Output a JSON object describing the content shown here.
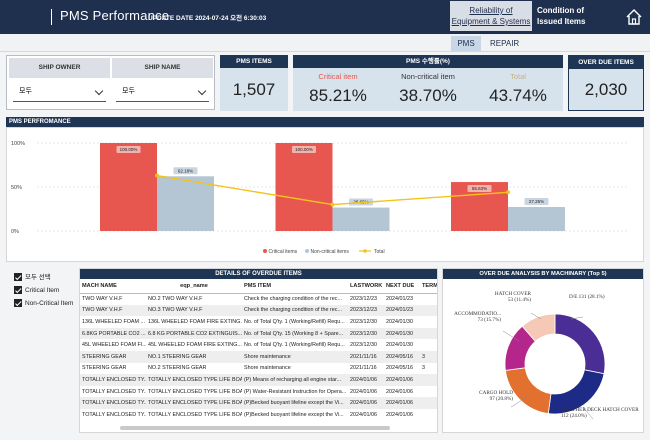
{
  "header": {
    "title": "PMS Performance",
    "update": "UPDATE DATE  2024-07-24 오전 6:30:03",
    "tab_reliability_line1": "Reliability of",
    "tab_reliability_line2": "Equipment & Systems",
    "tab_condition_line1": "Condition of",
    "tab_condition_line2": "Issued Items",
    "home_icon": "home-icon"
  },
  "subtabs": {
    "pms": "PMS",
    "repair": "REPAIR"
  },
  "filters": {
    "owner_label": "SHIP OWNER",
    "name_label": "SHIP NAME",
    "owner_value": "모두",
    "name_value": "모두"
  },
  "kpis": {
    "pms_items_label": "PMS ITEMS",
    "pms_items_value": "1,507",
    "rate_label": "PMS 수행률(%)",
    "critical_label": "Critical item",
    "critical_value": "85.21%",
    "noncritical_label": "Non-critical item",
    "noncritical_value": "38.70%",
    "total_label": "Total",
    "total_value": "43.74%",
    "overdue_label": "OVER DUE ITEMS",
    "overdue_value": "2,030"
  },
  "colors": {
    "critical": "#e8574f",
    "noncritical": "#b4c5d4",
    "total": "#f2c41c",
    "navy": "#1f3554"
  },
  "chart_data": [
    {
      "type": "bar",
      "title": "PMS PERFROMANCE",
      "categories": [
        "",
        "",
        ""
      ],
      "yticks": [
        "0%",
        "50%",
        "100%"
      ],
      "ylim": [
        0,
        100
      ],
      "series": [
        {
          "name": "Critical items",
          "values": [
            100.0,
            100.0,
            55.63
          ],
          "labels": [
            "100.00%",
            "100.00%",
            "55.63%"
          ]
        },
        {
          "name": "Non-critical items",
          "values": [
            62.18,
            26.65,
            27.25
          ],
          "labels": [
            "62.18%",
            "26.65%",
            "27.25%"
          ]
        },
        {
          "name": "Total",
          "type": "line",
          "values": [
            63.0,
            30.0,
            44.0
          ]
        }
      ]
    },
    {
      "type": "pie",
      "title": "OVER DUE ANALYSIS BY MACHINARY (Top 5)",
      "slices": [
        {
          "label": "D/E",
          "value": 131,
          "pct": "28.1%",
          "color": "#4a2e96",
          "text": "D/E 131 (28.1%)"
        },
        {
          "label": "WEATHER DECK HATCH COVER",
          "value": 112,
          "pct": "24.0%",
          "color": "#1d2a86",
          "text": "WEATHER DECK HATCH COVER 112 (24.0%)"
        },
        {
          "label": "CARGO HOLD",
          "value": 97,
          "pct": "20.8%",
          "color": "#e2702e",
          "text": "CARGO HOLD 97 (20.8%)"
        },
        {
          "label": "ACCOMMODATIO...",
          "value": 73,
          "pct": "15.7%",
          "color": "#b4268c",
          "text": "ACCOMMODATIO... 73 (15.7%)"
        },
        {
          "label": "HATCH COVER",
          "value": 53,
          "pct": "11.4%",
          "color": "#f6c9b6",
          "text": "HATCH COVER 53 (11.4%)"
        }
      ]
    }
  ],
  "checks": [
    "모두 선택",
    "Critical Item",
    "Non-Critical Item"
  ],
  "table": {
    "title": "DETAILS OF OVERDUE ITEMS",
    "headers": [
      "MACH NAME",
      "eqp_name",
      "PMS ITEM",
      "LASTWORK",
      "NEXT DUE",
      "TERM"
    ],
    "rows": [
      [
        "TWO WAY V.H.F",
        "NO.2 TWO WAY V.H.F",
        "Check the charging condition of the rec...",
        "2023/12/23",
        "2024/01/23",
        ""
      ],
      [
        "TWO WAY V.H.F",
        "NO.3 TWO WAY V.H.F",
        "Check the charging condition of the rec...",
        "2023/12/23",
        "2024/01/23",
        ""
      ],
      [
        "136L WHEELED FOAM ...",
        "136L WHEELED FOAM FIRE EXTING...",
        "No. of Total Q'ty. 1 (Working/Refill) Requ...",
        "2023/12/30",
        "2024/01/30",
        ""
      ],
      [
        "6.8KG PORTABLE CO2 ...",
        "6.8 KG PORTABLE CO2  EXTINGUIS...",
        "No. of Total Q'ty. 15 (Working 8 + Spare...",
        "2023/12/30",
        "2024/01/30",
        ""
      ],
      [
        "45L WHEELED FOAM FI...",
        "45L WHEELED FOAM FIRE EXTING...",
        "No. of Total Q'ty. 1 (Working/Refill) Requ...",
        "2023/12/30",
        "2024/01/30",
        ""
      ],
      [
        "STEERING GEAR",
        "NO.1 STEERING GEAR",
        "Shore maintenance",
        "2021/11/16",
        "2024/05/16",
        "3"
      ],
      [
        "STEERING GEAR",
        "NO.2 STEERING GEAR",
        "Shore maintenance",
        "2021/11/16",
        "2024/05/16",
        "3"
      ],
      [
        "TOTALLY ENCLOSED TY...",
        "TOTALLY ENCLOSED TYPE LIFE BOA...",
        "(P) Means of recharging all   engine star...",
        "2024/01/06",
        "2024/01/06",
        ""
      ],
      [
        "TOTALLY ENCLOSED TY...",
        "TOTALLY ENCLOSED TYPE LIFE BOA...",
        "(P) Water-Resistant Instruction for Opera...",
        "2024/01/06",
        "2024/01/06",
        ""
      ],
      [
        "TOTALLY ENCLOSED TY...",
        "TOTALLY ENCLOSED TYPE LIFE BOA...",
        "(P)Becked buoyant lifeline except the Vi...",
        "2024/01/06",
        "2024/01/06",
        ""
      ],
      [
        "TOTALLY ENCLOSED TY...",
        "TOTALLY ENCLOSED TYPE LIFE BOA...",
        "(P)Becked buoyant lifeline except the Vi...",
        "2024/01/06",
        "2024/01/06",
        ""
      ]
    ]
  }
}
